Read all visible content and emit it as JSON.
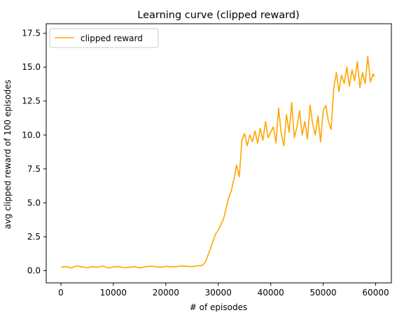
{
  "chart_data": {
    "type": "line",
    "title": "Learning curve (clipped reward)",
    "xlabel": "# of episodes",
    "ylabel": "avg clipped reward of 100 episodes",
    "xlim": [
      -2800,
      63000
    ],
    "ylim": [
      -0.9,
      18.2
    ],
    "xticks": [
      0,
      10000,
      20000,
      30000,
      40000,
      50000,
      60000
    ],
    "xtick_labels": [
      "0",
      "10000",
      "20000",
      "30000",
      "40000",
      "50000",
      "60000"
    ],
    "yticks": [
      0,
      2.5,
      5,
      7.5,
      10,
      12.5,
      15,
      17.5
    ],
    "ytick_labels": [
      "0.0",
      "2.5",
      "5.0",
      "7.5",
      "10.0",
      "12.5",
      "15.0",
      "17.5"
    ],
    "grid": false,
    "legend": {
      "placement": "top-left",
      "entries": [
        "clipped reward"
      ]
    },
    "color": "#ffa500",
    "series": [
      {
        "name": "clipped reward",
        "x": [
          0,
          1000,
          2000,
          3000,
          4000,
          5000,
          6000,
          7000,
          8000,
          9000,
          10000,
          11000,
          12000,
          13000,
          14000,
          15000,
          16000,
          17000,
          18000,
          19000,
          20000,
          21000,
          22000,
          23000,
          24000,
          25000,
          26000,
          27000,
          27500,
          28000,
          28500,
          29000,
          29500,
          30000,
          30500,
          31000,
          31500,
          32000,
          32500,
          33000,
          33500,
          34000,
          34500,
          35000,
          35500,
          36000,
          36500,
          37000,
          37500,
          38000,
          38500,
          39000,
          39500,
          40000,
          40500,
          41000,
          41500,
          42000,
          42500,
          43000,
          43500,
          44000,
          44500,
          45000,
          45500,
          46000,
          46500,
          47000,
          47500,
          48000,
          48500,
          49000,
          49500,
          50000,
          50500,
          51000,
          51500,
          52000,
          52500,
          53000,
          53500,
          54000,
          54500,
          55000,
          55500,
          56000,
          56500,
          57000,
          57500,
          58000,
          58500,
          59000,
          59500,
          59800
        ],
        "y": [
          0.25,
          0.3,
          0.2,
          0.35,
          0.28,
          0.22,
          0.3,
          0.25,
          0.35,
          0.2,
          0.28,
          0.3,
          0.22,
          0.25,
          0.3,
          0.2,
          0.28,
          0.33,
          0.3,
          0.25,
          0.32,
          0.28,
          0.3,
          0.35,
          0.32,
          0.3,
          0.35,
          0.4,
          0.6,
          1.1,
          1.6,
          2.2,
          2.7,
          3.0,
          3.4,
          3.8,
          4.6,
          5.4,
          5.9,
          6.8,
          7.8,
          6.9,
          9.6,
          10.1,
          9.2,
          10.0,
          9.5,
          10.3,
          9.4,
          10.5,
          9.6,
          11.0,
          9.8,
          10.2,
          10.6,
          9.4,
          12.0,
          10.1,
          9.2,
          11.5,
          10.2,
          12.4,
          9.8,
          10.6,
          11.8,
          10.0,
          11.0,
          9.7,
          12.2,
          10.8,
          10.0,
          11.4,
          9.5,
          11.8,
          12.2,
          11.0,
          10.4,
          13.4,
          14.6,
          13.2,
          14.4,
          13.8,
          15.0,
          13.6,
          14.8,
          14.0,
          15.4,
          13.5,
          14.6,
          13.8,
          15.8,
          13.9,
          14.5,
          14.3
        ]
      }
    ]
  }
}
